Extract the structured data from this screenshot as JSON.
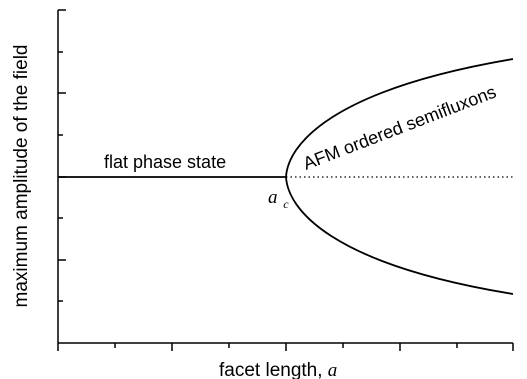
{
  "diagram": {
    "x_axis_label": "facet length, ",
    "x_axis_symbol": "a",
    "y_axis_label": "maximum amplitude of the field",
    "flat_phase_label": "flat phase state",
    "afm_label": "AFM ordered semifluxons",
    "critical_point_symbol": "a",
    "critical_point_subscript": "c",
    "line_color": "#000000",
    "dotted_line_style": "dotted"
  }
}
